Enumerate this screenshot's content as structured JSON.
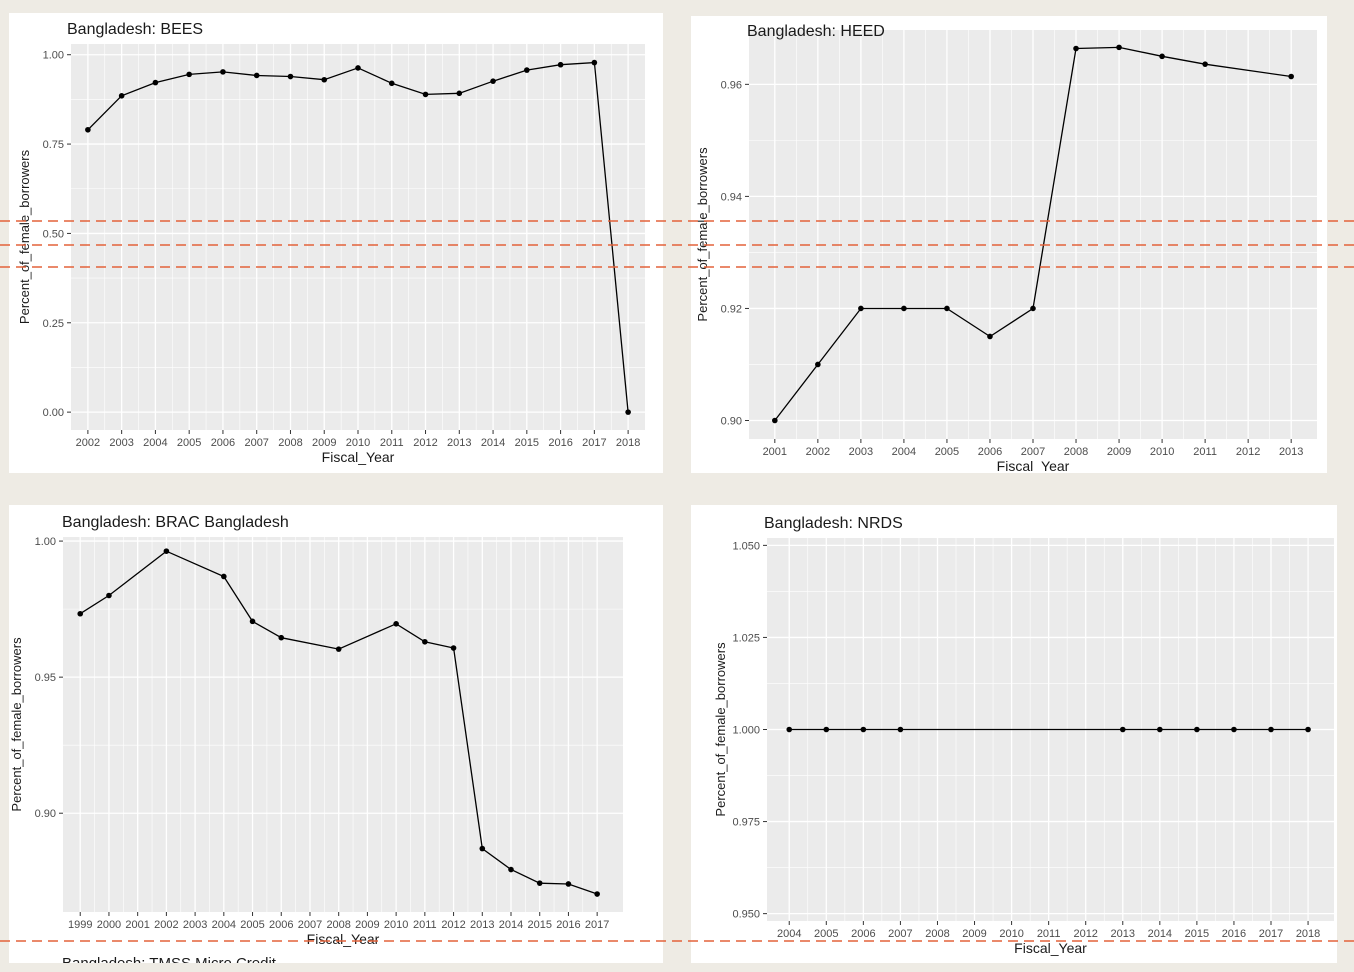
{
  "chart_data": [
    {
      "type": "line",
      "title": "Bangladesh:  BEES",
      "xlabel": "Fiscal_Year",
      "ylabel": "Percent_of_female_borrowers",
      "x": [
        2002,
        2003,
        2004,
        2005,
        2006,
        2007,
        2008,
        2009,
        2010,
        2011,
        2012,
        2013,
        2014,
        2015,
        2016,
        2017,
        2018
      ],
      "y": [
        0.79,
        0.885,
        0.922,
        0.945,
        0.952,
        0.942,
        0.939,
        0.93,
        0.963,
        0.92,
        0.889,
        0.892,
        0.926,
        0.957,
        0.972,
        0.978,
        0.0
      ],
      "xlim": [
        2001.5,
        2018.5
      ],
      "ylim": [
        -0.05,
        1.03
      ],
      "xticks": [
        2002,
        2003,
        2004,
        2005,
        2006,
        2007,
        2008,
        2009,
        2010,
        2011,
        2012,
        2013,
        2014,
        2015,
        2016,
        2017,
        2018
      ],
      "yticks": [
        0.0,
        0.25,
        0.5,
        0.75,
        1.0
      ],
      "ytick_labels": [
        "0.00",
        "0.25",
        "0.50",
        "0.75",
        "1.00"
      ],
      "grid": true
    },
    {
      "type": "line",
      "title": "Bangladesh:  HEED",
      "xlabel": "Fiscal_Year",
      "ylabel": "Percent_of_female_borrowers",
      "x": [
        2001,
        2002,
        2003,
        2004,
        2005,
        2006,
        2007,
        2008,
        2009,
        2010,
        2011,
        2013
      ],
      "y": [
        0.9,
        0.91,
        0.92,
        0.92,
        0.92,
        0.915,
        0.92,
        0.9664,
        0.9666,
        0.965,
        0.9636,
        0.9614
      ],
      "xlim": [
        2000.4,
        2013.6
      ],
      "ylim": [
        0.8967,
        0.9697
      ],
      "xticks": [
        2001,
        2002,
        2003,
        2004,
        2005,
        2006,
        2007,
        2008,
        2009,
        2010,
        2011,
        2012,
        2013
      ],
      "yticks": [
        0.9,
        0.92,
        0.94,
        0.96
      ],
      "ytick_labels": [
        "0.90",
        "0.92",
        "0.94",
        "0.96"
      ],
      "grid": true
    },
    {
      "type": "line",
      "title": "Bangladesh:  BRAC Bangladesh",
      "xlabel": "Fiscal_Year",
      "ylabel": "Percent_of_female_borrowers",
      "x": [
        1999,
        2000,
        2002,
        2004,
        2005,
        2006,
        2008,
        2010,
        2011,
        2012,
        2013,
        2014,
        2015,
        2016,
        2017
      ],
      "y": [
        0.9733,
        0.98,
        0.9963,
        0.987,
        0.9705,
        0.9645,
        0.9603,
        0.9696,
        0.963,
        0.9607,
        0.887,
        0.8793,
        0.8743,
        0.874,
        0.8703
      ],
      "xlim": [
        1998.4,
        2017.9
      ],
      "ylim": [
        0.8637,
        1.0015
      ],
      "xticks": [
        1999,
        2000,
        2001,
        2002,
        2003,
        2004,
        2005,
        2006,
        2007,
        2008,
        2009,
        2010,
        2011,
        2012,
        2013,
        2014,
        2015,
        2016,
        2017
      ],
      "yticks": [
        0.9,
        0.95,
        1.0
      ],
      "ytick_labels": [
        "0.90",
        "0.95",
        "1.00"
      ],
      "grid": true
    },
    {
      "type": "line",
      "title": "Bangladesh:  NRDS",
      "xlabel": "Fiscal_Year",
      "ylabel": "Percent_of_female_borrowers",
      "x": [
        2004,
        2005,
        2006,
        2007,
        2013,
        2014,
        2015,
        2016,
        2017,
        2018
      ],
      "y": [
        1.0,
        1.0,
        1.0,
        1.0,
        1.0,
        1.0,
        1.0,
        1.0,
        1.0,
        1.0
      ],
      "xlim": [
        2003.4,
        2018.7
      ],
      "ylim": [
        0.948,
        1.052
      ],
      "xticks": [
        2004,
        2005,
        2006,
        2007,
        2008,
        2009,
        2010,
        2011,
        2012,
        2013,
        2014,
        2015,
        2016,
        2017,
        2018
      ],
      "yticks": [
        0.95,
        0.975,
        1.0,
        1.025,
        1.05
      ],
      "ytick_labels": [
        "0.950",
        "0.975",
        "1.000",
        "1.025",
        "1.050"
      ],
      "grid": true
    }
  ],
  "partial_title": "Bangladesh:  TMSS Micro Credit",
  "colors": {
    "page_background": "#eeebe4",
    "plot_background": "#ebebeb",
    "grid": "#ffffff",
    "series": "#000000",
    "guide_line": "#e3623a"
  }
}
